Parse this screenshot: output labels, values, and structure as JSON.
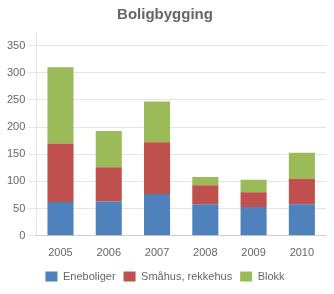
{
  "chart_data": {
    "type": "bar",
    "title": "Boligbygging",
    "categories": [
      "2005",
      "2006",
      "2007",
      "2008",
      "2009",
      "2010"
    ],
    "series": [
      {
        "name": "Eneboliger",
        "color": "#4f81bd",
        "values": [
          62,
          63,
          77,
          58,
          53,
          58
        ]
      },
      {
        "name": "Småhus, rekkehus",
        "color": "#c0504d",
        "values": [
          108,
          63,
          95,
          35,
          27,
          47
        ]
      },
      {
        "name": "Blokk",
        "color": "#9bbb59",
        "values": [
          140,
          67,
          75,
          15,
          23,
          48
        ]
      }
    ],
    "stacked": true,
    "ylim": [
      0,
      375
    ],
    "yticks": [
      0,
      50,
      100,
      150,
      200,
      250,
      300,
      350
    ],
    "grid": true,
    "legend": "bottom"
  }
}
